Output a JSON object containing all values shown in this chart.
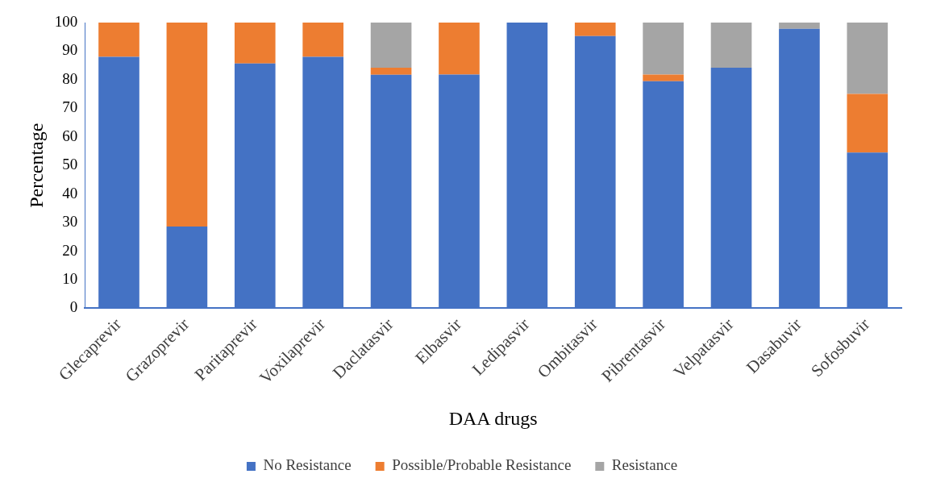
{
  "chart_data": {
    "type": "bar",
    "stacked": true,
    "xlabel": "DAA drugs",
    "ylabel": "Percentage",
    "categories": [
      "Glecaprevir",
      "Grazoprevir",
      "Paritaprevir",
      "Voxilaprevir",
      "Daclatasvir",
      "Elbasvir",
      "Ledipasvir",
      "Ombitasvir",
      "Pibrentasvir",
      "Velpatasvir",
      "Dasabuvir",
      "Sofosbuvir"
    ],
    "series": [
      {
        "name": "No Resistance",
        "color": "#4472c4",
        "values": [
          88,
          28.6,
          85.7,
          88,
          81.7,
          81.8,
          100,
          95.3,
          79.5,
          84.2,
          97.8,
          54.5
        ]
      },
      {
        "name": "Possible/Probable Resistance",
        "color": "#ed7d31",
        "values": [
          12,
          71.4,
          14.3,
          12,
          2.5,
          18.2,
          0,
          4.7,
          2.3,
          0,
          0,
          20.5
        ]
      },
      {
        "name": "Resistance",
        "color": "#a5a5a5",
        "values": [
          0,
          0,
          0,
          0,
          15.8,
          0,
          0,
          0,
          18.2,
          15.8,
          2.2,
          25
        ]
      }
    ],
    "ylim": [
      0,
      100
    ],
    "yticks": [
      0,
      10,
      20,
      30,
      40,
      50,
      60,
      70,
      80,
      90,
      100
    ],
    "grid": false,
    "legend": "bottom"
  }
}
